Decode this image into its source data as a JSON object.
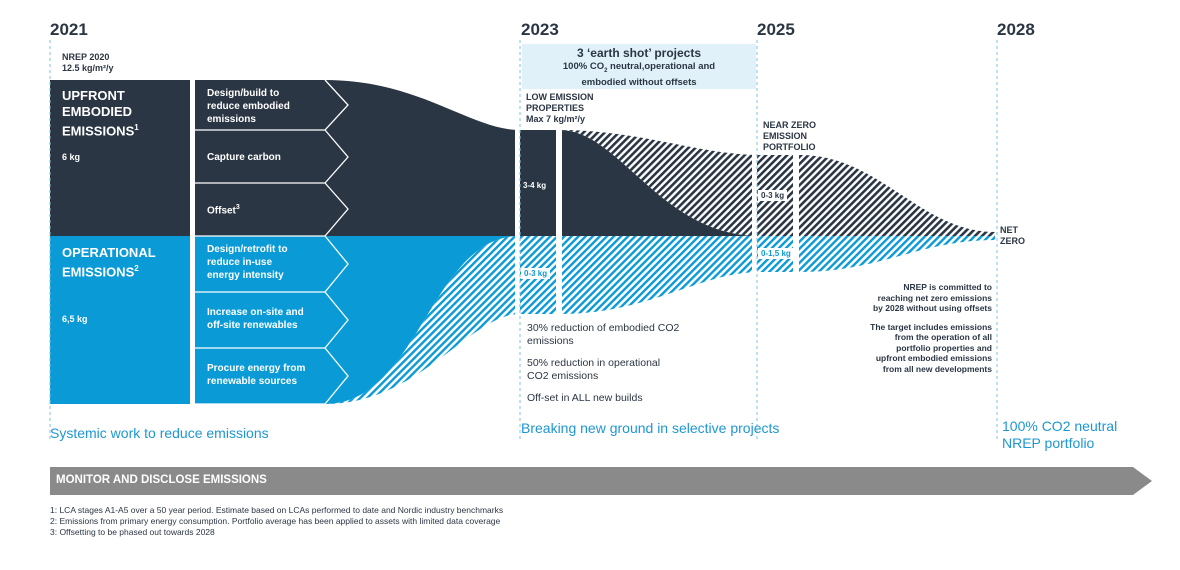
{
  "years": {
    "y2021": "2021",
    "y2023": "2023",
    "y2025": "2025",
    "y2028": "2028"
  },
  "nrep2020": {
    "line1": "NREP 2020",
    "line2": "12.5 kg/m²/y"
  },
  "upfront": {
    "title_1": "UPFRONT",
    "title_2": "EMBODIED",
    "title_3": "EMISSIONS",
    "sup": "1",
    "value": "6 kg"
  },
  "operational": {
    "title_1": "OPERATIONAL",
    "title_2": "EMISSIONS",
    "sup": "2",
    "value": "6,5 kg"
  },
  "levers": [
    {
      "l1": "Design/build to",
      "l2": "reduce embodied",
      "l3": "emissions"
    },
    {
      "l1": "Capture carbon",
      "l2": "",
      "l3": ""
    },
    {
      "l1": "Offset",
      "sup": "3",
      "l2": "",
      "l3": ""
    },
    {
      "l1": "Design/retrofit to",
      "l2": "reduce in-use",
      "l3": "energy intensity"
    },
    {
      "l1": "Increase on-site and",
      "l2": "off-site renewables",
      "l3": ""
    },
    {
      "l1": "Procure energy from",
      "l2": "renewable sources",
      "l3": ""
    }
  ],
  "earthshot": {
    "title": "3 ‘earth shot’ projects",
    "line1_a": "100% CO",
    "line1_sub": "2",
    "line1_b": " neutral,operational and",
    "line2": "embodied without offsets"
  },
  "low_emission": {
    "l1": "LOW EMISSION",
    "l2": "PROPERTIES",
    "l3": "Max 7 kg/m²/y"
  },
  "near_zero": {
    "l1": "NEAR ZERO",
    "l2": "EMISSION",
    "l3": "PORTFOLIO"
  },
  "net_zero": {
    "l1": "NET",
    "l2": "ZERO"
  },
  "pills": {
    "p2023_embodied": "3-4 kg",
    "p2023_operational": "0-3 kg",
    "p2025_embodied": "0-3 kg",
    "p2025_operational": "0-1,5 kg"
  },
  "goals_2023": {
    "g1a": "30% reduction of embodied CO2",
    "g1b": "emissions",
    "g2a": "50% reduction in operational",
    "g2b": "CO2 emissions",
    "g3": "Off-set in ALL new builds"
  },
  "commitment": {
    "c1": "NREP is committed to",
    "c2": "reaching net zero emissions",
    "c3": "by 2028 without using offsets",
    "t1": "The target includes emissions",
    "t2": "from the operation of all",
    "t3": "portfolio properties and",
    "t4": "upfront embodied emissions",
    "t5": "from all new developments"
  },
  "phase_labels": {
    "systemic": "Systemic work to reduce emissions",
    "breaking": "Breaking new ground in selective projects",
    "neutral_1": "100% CO2 neutral",
    "neutral_2": "NREP portfolio"
  },
  "banner": "MONITOR AND DISCLOSE EMISSIONS",
  "footnotes": {
    "f1": "1: LCA stages A1-A5 over a 50 year period. Estimate based on LCAs performed to date and Nordic industry benchmarks",
    "f2": "2: Emissions from primary energy consumption. Portfolio average has been applied to assets with limited data coverage",
    "f3": "3: Offsetting to be phased out towards 2028"
  },
  "colors": {
    "navy": "#2b3644",
    "blue": "#0a9ad6",
    "grey": "#8a8a8a",
    "light_blue_box": "#e1f1fa",
    "accent_text": "#1d97d4"
  }
}
